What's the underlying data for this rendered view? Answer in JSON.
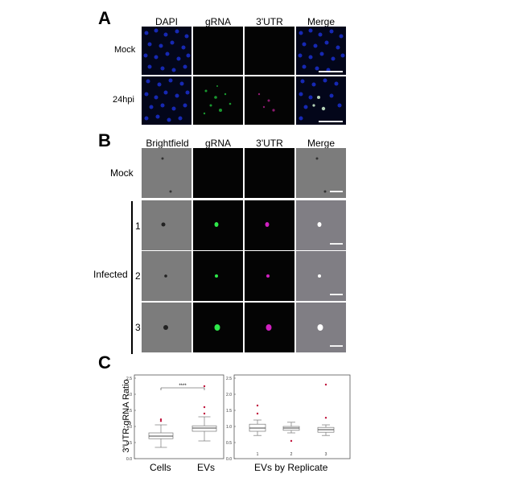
{
  "panelA": {
    "letter": "A",
    "columns": [
      "DAPI",
      "gRNA",
      "3'UTR",
      "Merge"
    ],
    "rows": [
      "Mock",
      "24hpi"
    ]
  },
  "panelB": {
    "letter": "B",
    "columns": [
      "Brightfield",
      "gRNA",
      "3'UTR",
      "Merge"
    ],
    "mock_label": "Mock",
    "infected_label": "Infected",
    "replicates": [
      "1",
      "2",
      "3"
    ]
  },
  "panelC": {
    "letter": "C",
    "significance": "****",
    "xcat_cells": "Cells",
    "xcat_evs": "EVs",
    "right_xlabel": "EVs by Replicate"
  },
  "chart_data": [
    {
      "type": "box",
      "ylabel": "3'UTR:gRNA Ratio",
      "ylim": [
        0.0,
        2.6
      ],
      "yticks": [
        "0.0",
        "0.5",
        "1.0",
        "1.5",
        "2.0",
        "2.5"
      ],
      "categories": [
        "Cells",
        "EVs"
      ],
      "boxes": [
        {
          "name": "Cells",
          "min": 0.35,
          "q1": 0.62,
          "median": 0.7,
          "q3": 0.8,
          "max": 1.05,
          "outliers": [
            1.17,
            1.22
          ]
        },
        {
          "name": "EVs",
          "min": 0.55,
          "q1": 0.85,
          "median": 0.95,
          "q3": 1.02,
          "max": 1.3,
          "outliers": [
            1.4,
            1.6,
            2.25
          ]
        }
      ],
      "annotation": "****"
    },
    {
      "type": "box",
      "xlabel": "EVs by Replicate",
      "ylim": [
        0.0,
        2.6
      ],
      "yticks": [
        "0.0",
        "0.5",
        "1.0",
        "1.5",
        "2.0",
        "2.5"
      ],
      "categories": [
        "1",
        "2",
        "3"
      ],
      "boxes": [
        {
          "name": "1",
          "min": 0.72,
          "q1": 0.85,
          "median": 0.95,
          "q3": 1.07,
          "max": 1.2,
          "outliers": [
            1.4,
            1.65
          ]
        },
        {
          "name": "2",
          "min": 0.8,
          "q1": 0.88,
          "median": 0.95,
          "q3": 1.0,
          "max": 1.13,
          "outliers": [
            0.55
          ]
        },
        {
          "name": "3",
          "min": 0.72,
          "q1": 0.82,
          "median": 0.9,
          "q3": 0.97,
          "max": 1.05,
          "outliers": [
            1.27,
            2.3
          ]
        }
      ]
    }
  ]
}
